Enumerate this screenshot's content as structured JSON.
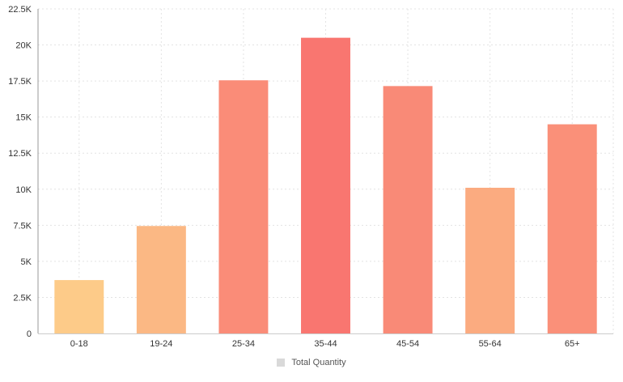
{
  "chart_data": {
    "type": "bar",
    "categories": [
      "0-18",
      "19-24",
      "25-34",
      "35-44",
      "45-54",
      "55-64",
      "65+"
    ],
    "series": [
      {
        "name": "Total Quantity",
        "values": [
          3700,
          7450,
          17550,
          20500,
          17150,
          10100,
          14500
        ]
      }
    ],
    "bar_colors": [
      "#fdcb89",
      "#fbb884",
      "#fa8c78",
      "#f97670",
      "#f98a77",
      "#fbab80",
      "#fa9079"
    ],
    "ylim": [
      0,
      22500
    ],
    "y_ticks": [
      {
        "value": 0,
        "label": "0"
      },
      {
        "value": 2500,
        "label": "2.5K"
      },
      {
        "value": 5000,
        "label": "5K"
      },
      {
        "value": 7500,
        "label": "7.5K"
      },
      {
        "value": 10000,
        "label": "10K"
      },
      {
        "value": 12500,
        "label": "12.5K"
      },
      {
        "value": 15000,
        "label": "15K"
      },
      {
        "value": 17500,
        "label": "17.5K"
      },
      {
        "value": 20000,
        "label": "20K"
      },
      {
        "value": 22500,
        "label": "22.5K"
      }
    ],
    "grid": true,
    "legend_position": "bottom-center",
    "legend_color": "#d9d9d9"
  }
}
